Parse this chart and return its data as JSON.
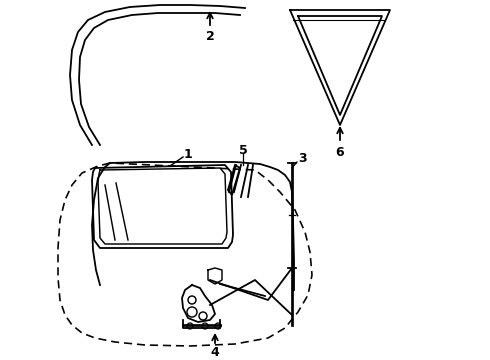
{
  "background_color": "#ffffff",
  "line_color": "#000000",
  "lw": 1.3,
  "figsize": [
    4.9,
    3.6
  ],
  "dpi": 100
}
